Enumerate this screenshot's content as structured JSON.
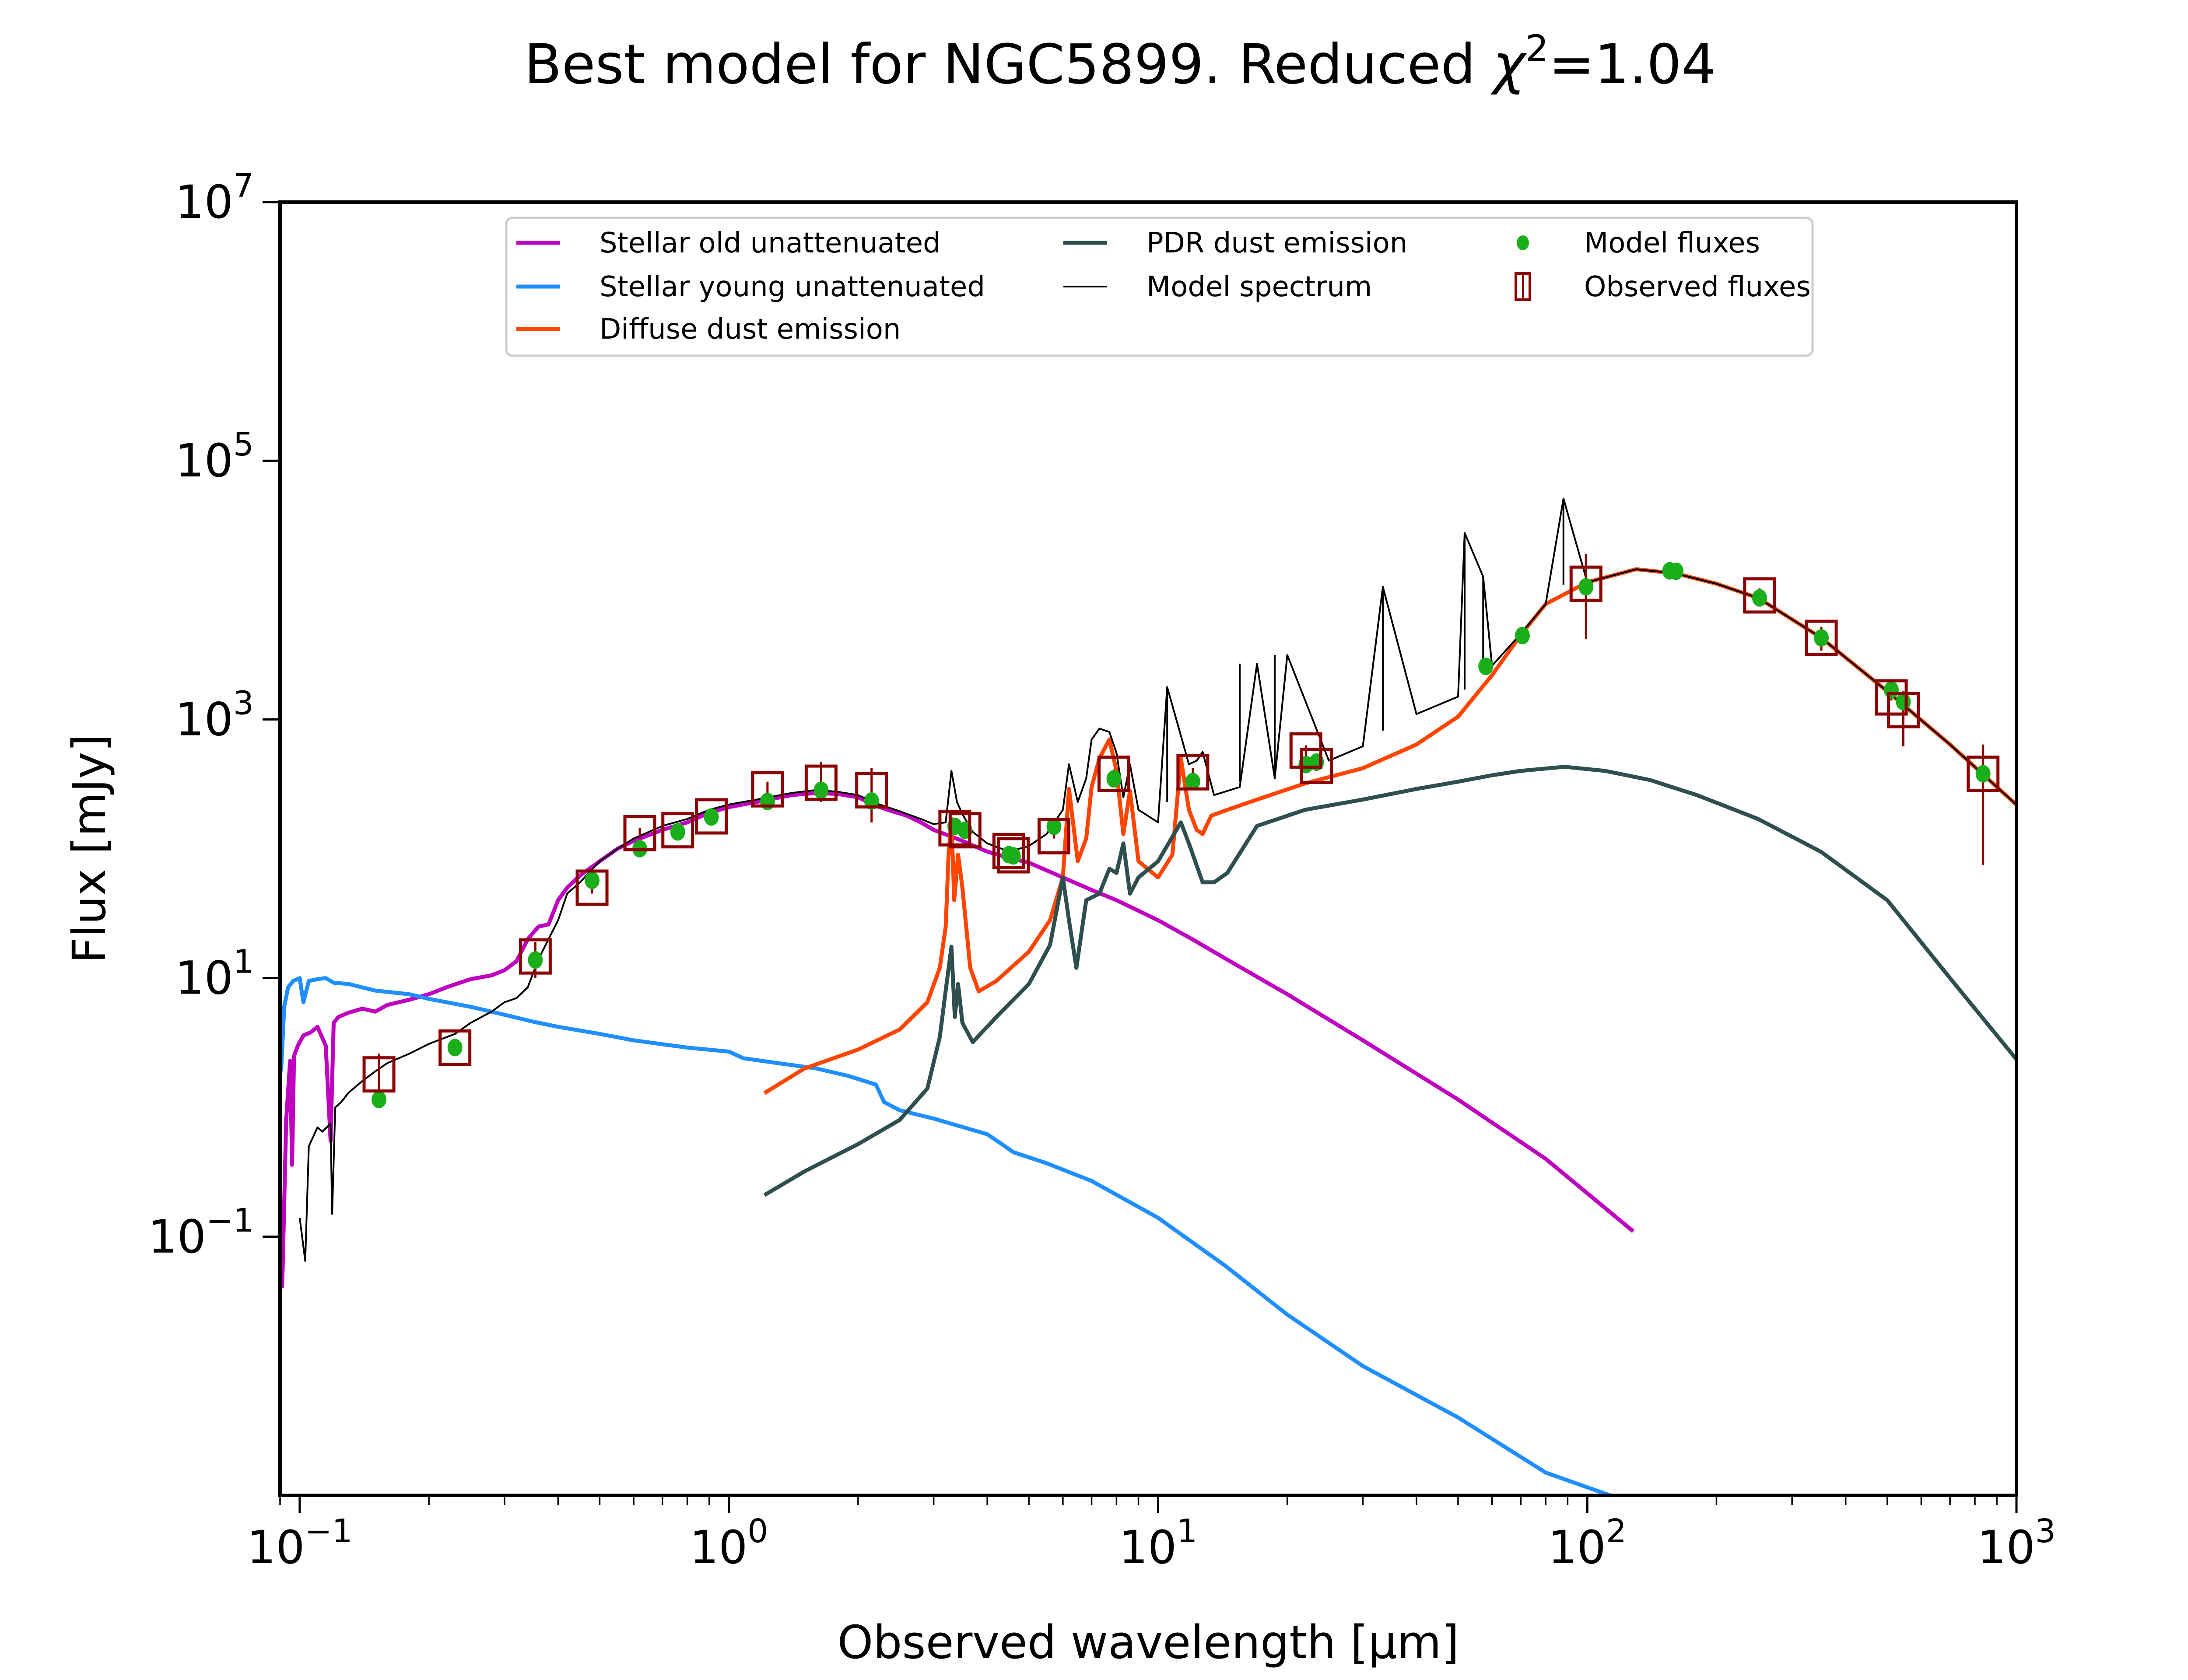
{
  "chart_data": {
    "type": "line",
    "title": "Best model for NGC5899. Reduced χ²=1.04",
    "title_parts": {
      "prefix": "Best model for NGC5899. Reduced ",
      "chi": "χ",
      "sup": "2",
      "suffix": "=1.04"
    },
    "xlabel": "Observed wavelength [μm]",
    "ylabel": "Flux [mJy]",
    "xscale": "log",
    "yscale": "log",
    "xlim": [
      0.09,
      1000
    ],
    "ylim": [
      0.001,
      10000000
    ],
    "grid": false,
    "legend_position": "top-center",
    "x_ticks": [
      {
        "value": 0.1,
        "base": "10",
        "exp": "−1"
      },
      {
        "value": 1,
        "base": "10",
        "exp": "0"
      },
      {
        "value": 10,
        "base": "10",
        "exp": "1"
      },
      {
        "value": 100,
        "base": "10",
        "exp": "2"
      },
      {
        "value": 1000,
        "base": "10",
        "exp": "3"
      }
    ],
    "y_ticks": [
      {
        "value": 0.1,
        "base": "10",
        "exp": "−1"
      },
      {
        "value": 10,
        "base": "10",
        "exp": "1"
      },
      {
        "value": 1000,
        "base": "10",
        "exp": "3"
      },
      {
        "value": 100000,
        "base": "10",
        "exp": "5"
      },
      {
        "value": 10000000,
        "base": "10",
        "exp": "7"
      }
    ],
    "legend": [
      {
        "label": "Stellar old unattenuated",
        "kind": "line",
        "series": "stellar_old"
      },
      {
        "label": "Stellar young unattenuated",
        "kind": "line",
        "series": "stellar_young"
      },
      {
        "label": "Diffuse dust emission",
        "kind": "line",
        "series": "diffuse_dust"
      },
      {
        "label": "PDR dust emission",
        "kind": "line",
        "series": "pdr_dust"
      },
      {
        "label": "Model spectrum",
        "kind": "line",
        "series": "model_spectrum"
      },
      {
        "label": "Model fluxes",
        "kind": "dot",
        "series": "model_fluxes"
      },
      {
        "label": "Observed fluxes",
        "kind": "square",
        "series": "observed_fluxes"
      }
    ],
    "series": [
      {
        "id": "stellar_old",
        "name": "Stellar old unattenuated",
        "color": "#bf00bf",
        "width": 9,
        "x": [
          0.091,
          0.0915,
          0.093,
          0.095,
          0.096,
          0.097,
          0.099,
          0.102,
          0.106,
          0.11,
          0.115,
          0.118,
          0.12,
          0.123,
          0.13,
          0.14,
          0.15,
          0.16,
          0.18,
          0.2,
          0.22,
          0.25,
          0.28,
          0.3,
          0.32,
          0.34,
          0.36,
          0.38,
          0.4,
          0.42,
          0.45,
          0.5,
          0.55,
          0.6,
          0.7,
          0.8,
          0.9,
          1.0,
          1.2,
          1.4,
          1.6,
          1.8,
          2.0,
          2.2,
          2.4,
          2.6,
          2.8,
          3.0,
          3.5,
          4.0,
          4.5,
          5.0,
          6.0,
          7.0,
          8.0,
          10,
          12,
          15,
          20,
          30,
          50,
          80,
          128
        ],
        "y": [
          0.04,
          0.08,
          0.8,
          2.3,
          0.36,
          2.5,
          3.0,
          3.6,
          3.8,
          4.2,
          3.0,
          0.55,
          4.5,
          5.0,
          5.4,
          5.8,
          5.5,
          6.2,
          6.8,
          7.5,
          8.5,
          9.8,
          10.5,
          11.5,
          13.5,
          20,
          25,
          26,
          40,
          50,
          62,
          80,
          100,
          115,
          140,
          160,
          190,
          210,
          235,
          260,
          270,
          265,
          250,
          215,
          195,
          180,
          160,
          140,
          115,
          95,
          85,
          78,
          60,
          48,
          40,
          28,
          20,
          13,
          7.5,
          3.3,
          1.15,
          0.4,
          0.11
        ]
      },
      {
        "id": "stellar_young",
        "name": "Stellar young unattenuated",
        "color": "#1f8fff",
        "width": 9,
        "x": [
          0.0905,
          0.092,
          0.094,
          0.0966,
          0.1,
          0.102,
          0.105,
          0.11,
          0.115,
          0.12,
          0.13,
          0.15,
          0.18,
          0.2,
          0.25,
          0.3,
          0.35,
          0.4,
          0.5,
          0.6,
          0.8,
          1.0,
          1.08,
          1.3,
          1.6,
          1.9,
          2.2,
          2.3,
          2.5,
          3.0,
          4.0,
          4.4,
          4.6,
          5.5,
          7.0,
          10,
          14.3,
          20,
          30,
          50,
          80,
          113
        ],
        "y": [
          1.9,
          6.0,
          8.5,
          9.5,
          10.0,
          6.5,
          9.5,
          9.8,
          10.0,
          9.2,
          9.0,
          8.0,
          7.5,
          6.9,
          6.0,
          5.2,
          4.6,
          4.2,
          3.7,
          3.3,
          2.9,
          2.7,
          2.4,
          2.2,
          2.0,
          1.75,
          1.5,
          1.1,
          0.95,
          0.82,
          0.62,
          0.5,
          0.45,
          0.37,
          0.27,
          0.14,
          0.06,
          0.025,
          0.01,
          0.004,
          0.0015,
          0.001
        ]
      },
      {
        "id": "diffuse_dust",
        "name": "Diffuse dust emission",
        "color": "#ff4500",
        "width": 9,
        "x": [
          1.21,
          1.5,
          2.0,
          2.5,
          2.9,
          3.1,
          3.2,
          3.25,
          3.3,
          3.35,
          3.42,
          3.5,
          3.65,
          3.82,
          4.2,
          5.0,
          5.6,
          6.0,
          6.2,
          6.5,
          6.8,
          7.0,
          7.3,
          7.7,
          8.0,
          8.3,
          8.6,
          9.0,
          10,
          10.8,
          11.3,
          11.8,
          12.3,
          12.7,
          13.3,
          14.5,
          17,
          22,
          30,
          40,
          50,
          60,
          70,
          80,
          100,
          130,
          160,
          200,
          250,
          350,
          500,
          700,
          1000
        ],
        "y": [
          1.29,
          2.0,
          2.8,
          4.0,
          6.5,
          12,
          25,
          90,
          170,
          40,
          90,
          50,
          12,
          7.9,
          9.5,
          16,
          28,
          60,
          290,
          80,
          120,
          300,
          500,
          700,
          400,
          130,
          280,
          80,
          60,
          90,
          500,
          200,
          140,
          130,
          180,
          200,
          240,
          320,
          420,
          640,
          1050,
          2200,
          4500,
          7800,
          11500,
          14500,
          13500,
          11200,
          8700,
          4300,
          1650,
          640,
          219
        ]
      },
      {
        "id": "pdr_dust",
        "name": "PDR dust emission",
        "color": "#2f4f4f",
        "width": 9,
        "x": [
          1.21,
          1.5,
          2.0,
          2.5,
          2.9,
          3.1,
          3.2,
          3.3,
          3.36,
          3.42,
          3.5,
          3.7,
          4.2,
          5.0,
          5.6,
          6.0,
          6.2,
          6.45,
          6.8,
          7.3,
          7.7,
          8.0,
          8.3,
          8.6,
          9.0,
          10,
          11.3,
          11.8,
          12.7,
          13.5,
          14.5,
          17,
          22,
          30,
          40,
          50,
          60,
          70,
          88.5,
          110,
          140,
          180,
          250,
          350,
          500,
          700,
          1000
        ],
        "y": [
          0.21,
          0.32,
          0.52,
          0.8,
          1.4,
          3.5,
          8,
          17.5,
          5,
          9,
          4.5,
          3.2,
          5,
          9,
          18,
          60,
          28,
          12,
          40,
          45,
          70,
          65,
          110,
          45,
          60,
          80,
          160,
          110,
          55,
          55,
          65,
          150,
          200,
          240,
          290,
          330,
          370,
          400,
          430,
          400,
          340,
          260,
          170,
          95,
          40,
          10,
          2.35
        ]
      },
      {
        "id": "model_spectrum",
        "name": "Model spectrum",
        "color": "#000000",
        "width": 4,
        "x": [
          0.1,
          0.103,
          0.105,
          0.11,
          0.113,
          0.118,
          0.119,
          0.121,
          0.125,
          0.13,
          0.14,
          0.15,
          0.16,
          0.18,
          0.2,
          0.23,
          0.25,
          0.28,
          0.3,
          0.32,
          0.34,
          0.36,
          0.38,
          0.4,
          0.42,
          0.45,
          0.5,
          0.55,
          0.6,
          0.7,
          0.8,
          0.9,
          1.0,
          1.2,
          1.4,
          1.6,
          1.8,
          2.0,
          2.2,
          2.5,
          2.8,
          3.0,
          3.2,
          3.3,
          3.4,
          3.5,
          3.7,
          4.0,
          4.5,
          5.0,
          5.5,
          6.0,
          6.2,
          6.5,
          6.8,
          7.0,
          7.3,
          7.7,
          8.0,
          8.3,
          8.6,
          9.0,
          10,
          10.5,
          11.3,
          11.8,
          12.3,
          12.7,
          13.5,
          15.5,
          17,
          18.7,
          20,
          25,
          30,
          33.4,
          40,
          50,
          51.8,
          57.2,
          60,
          70,
          80,
          88,
          100,
          130,
          160,
          200,
          250,
          350,
          500,
          700,
          1000
        ],
        "y": [
          0.14,
          0.065,
          0.5,
          0.7,
          0.65,
          0.75,
          0.15,
          1.0,
          1.1,
          1.3,
          1.6,
          1.9,
          2.2,
          2.6,
          3.1,
          3.7,
          4.5,
          5.5,
          6.5,
          7.0,
          8.5,
          14,
          20,
          28,
          45,
          55,
          80,
          100,
          120,
          150,
          170,
          200,
          220,
          245,
          270,
          285,
          275,
          260,
          225,
          195,
          170,
          155,
          160,
          400,
          230,
          185,
          135,
          110,
          95,
          105,
          130,
          200,
          450,
          230,
          350,
          700,
          850,
          800,
          550,
          250,
          450,
          200,
          160,
          1780,
          750,
          450,
          480,
          560,
          260,
          300,
          2700,
          350,
          3150,
          480,
          620,
          10600,
          1100,
          1500,
          27700,
          12700,
          2600,
          4600,
          7800,
          51000,
          11500,
          14500,
          13500,
          11200,
          8700,
          4300,
          1650,
          640,
          219
        ]
      },
      {
        "id": "model_spectrum_lines",
        "name": "Model spectrum emission lines",
        "color": "#000000",
        "width": 4,
        "kind": "spikes",
        "x": [
          10.5,
          15.5,
          18.7,
          33.4,
          51.8,
          57.2,
          88
        ],
        "y_base": [
          230,
          330,
          380,
          820,
          1700,
          2350,
          11000
        ],
        "y_top": [
          1780,
          2700,
          3150,
          10600,
          27700,
          12700,
          51000
        ]
      }
    ],
    "points": {
      "observed_fluxes": {
        "name": "Observed fluxes",
        "color": "#8b0000",
        "x": [
          0.153,
          0.23,
          0.354,
          0.48,
          0.62,
          0.76,
          0.91,
          1.23,
          1.64,
          2.15,
          3.36,
          3.55,
          4.49,
          4.6,
          5.72,
          7.89,
          12.05,
          22.1,
          23.4,
          99.3,
          252,
          351,
          511,
          545,
          836
        ],
        "y": [
          1.8,
          2.9,
          14.7,
          50,
          132,
          139,
          178,
          288,
          324,
          283,
          144,
          139,
          96,
          89,
          125,
          380,
          390,
          575,
          437,
          11200,
          9100,
          4270,
          1480,
          1180,
          380
        ],
        "err_lo": [
          1.15,
          2.5,
          10,
          45,
          120,
          125,
          165,
          250,
          230,
          160,
          135,
          130,
          90,
          83,
          120,
          350,
          360,
          520,
          400,
          4200,
          8000,
          3400,
          1400,
          620,
          75
        ],
        "err_hi": [
          2.6,
          3.3,
          19,
          55,
          145,
          150,
          190,
          330,
          470,
          420,
          155,
          148,
          102,
          95,
          130,
          410,
          420,
          630,
          470,
          19000,
          10300,
          5200,
          1560,
          1650,
          640
        ]
      },
      "model_fluxes": {
        "name": "Model fluxes",
        "color": "#1aaf1a",
        "x": [
          0.153,
          0.23,
          0.354,
          0.48,
          0.62,
          0.76,
          0.91,
          1.23,
          1.64,
          2.15,
          3.36,
          3.55,
          4.49,
          4.6,
          5.72,
          7.89,
          12.05,
          22.1,
          23.4,
          58,
          70.6,
          99.3,
          155.6,
          161,
          252,
          351,
          511,
          545,
          836
        ],
        "y": [
          1.15,
          2.9,
          13.8,
          57,
          100,
          135,
          176,
          232,
          283,
          234,
          149,
          139,
          90,
          88,
          149,
          347,
          331,
          447,
          468,
          2570,
          4450,
          10600,
          14100,
          14000,
          8700,
          4270,
          1690,
          1370,
          380
        ]
      }
    }
  }
}
